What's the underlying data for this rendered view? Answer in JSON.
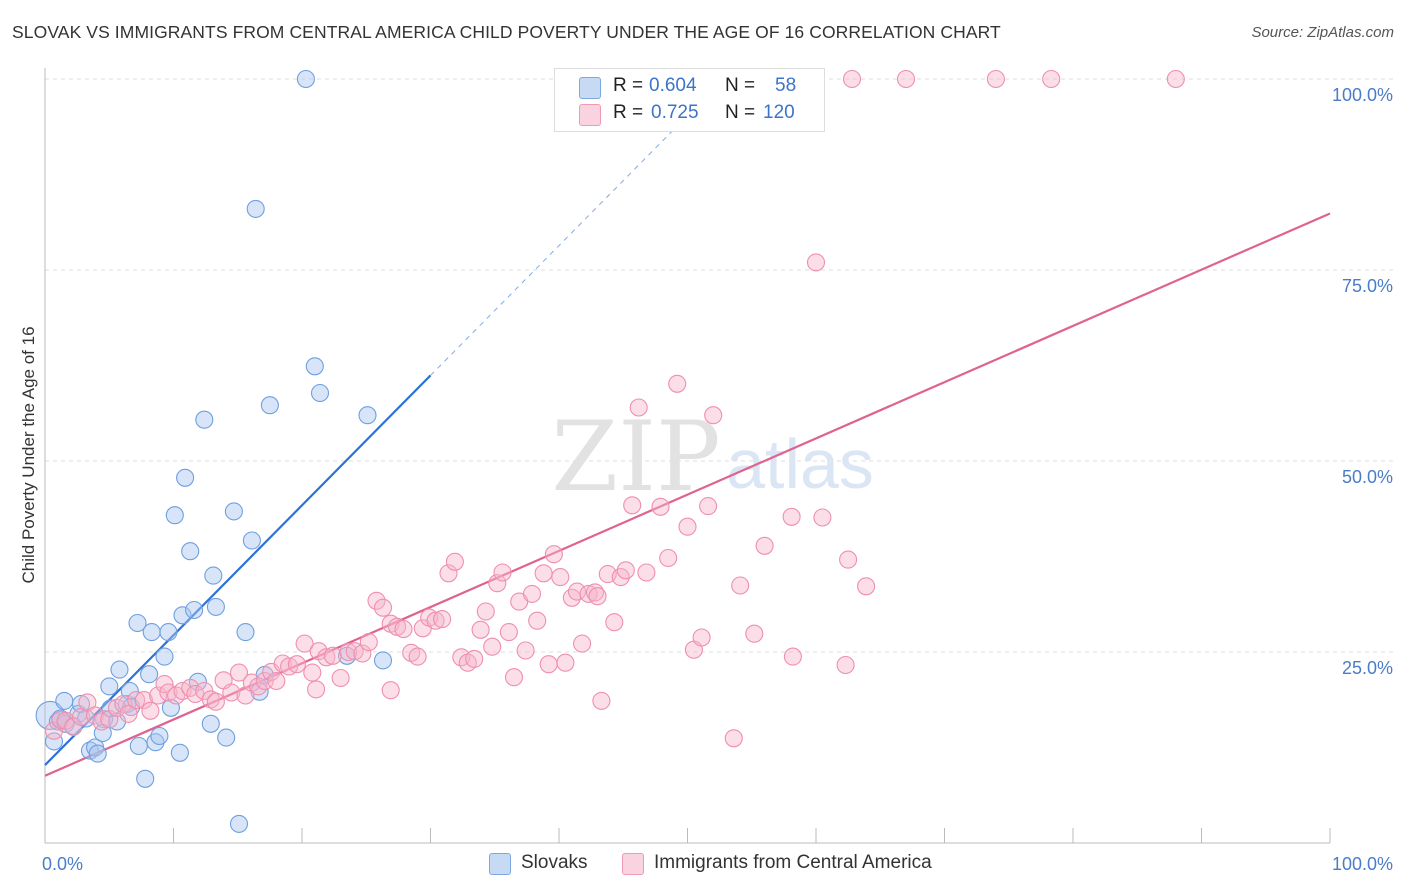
{
  "title": "SLOVAK VS IMMIGRANTS FROM CENTRAL AMERICA CHILD POVERTY UNDER THE AGE OF 16 CORRELATION CHART",
  "source": "Source: ZipAtlas.com",
  "watermark": {
    "zip": "ZIP",
    "atlas": "atlas"
  },
  "legend": {
    "rows": [
      {
        "r_label": "R =",
        "r_value": "0.604",
        "n_label": "N =",
        "n_value": "58",
        "color": "#a9c6ef"
      },
      {
        "r_label": "R =",
        "r_value": "0.725",
        "n_label": "N =",
        "n_value": "120",
        "color": "#f6b6cb"
      }
    ]
  },
  "bottom_legend": [
    {
      "label": "Slovaks",
      "color": "#a9c6ef"
    },
    {
      "label": "Immigrants from Central America",
      "color": "#f6b6cb"
    }
  ],
  "chart_data": {
    "type": "scatter",
    "title": "SLOVAK VS IMMIGRANTS FROM CENTRAL AMERICA CHILD POVERTY UNDER THE AGE OF 16 CORRELATION CHART",
    "xlabel": "",
    "ylabel": "Child Poverty Under the Age of 16",
    "xlim": [
      0,
      100
    ],
    "ylim": [
      0,
      102
    ],
    "x_tick_labels": [
      {
        "value": 0,
        "label": "0.0%"
      },
      {
        "value": 100,
        "label": "100.0%"
      }
    ],
    "y_tick_labels": [
      {
        "value": 25,
        "label": "25.0%"
      },
      {
        "value": 50,
        "label": "50.0%"
      },
      {
        "value": 75,
        "label": "75.0%"
      },
      {
        "value": 100,
        "label": "100.0%"
      }
    ],
    "grid": true,
    "legend_position": "top-center",
    "series": [
      {
        "name": "Slovaks",
        "color": "#6f9fe0",
        "fill": "#a9c6ef",
        "line_color": "#2d72d6",
        "trend": {
          "x0": 0,
          "y0": 10.2,
          "x1": 30,
          "y1": 61.2,
          "dash_to_x": 52,
          "dash_to_y": 98.6
        },
        "points": [
          [
            0.4,
            16.7
          ],
          [
            0.7,
            13.3
          ],
          [
            1.0,
            15.9
          ],
          [
            1.2,
            16.3
          ],
          [
            1.5,
            18.6
          ],
          [
            1.6,
            15.6
          ],
          [
            2.2,
            15.3
          ],
          [
            2.6,
            16.9
          ],
          [
            2.8,
            18.2
          ],
          [
            3.2,
            16.3
          ],
          [
            3.5,
            12.1
          ],
          [
            3.9,
            12.5
          ],
          [
            4.1,
            11.7
          ],
          [
            4.6,
            16.2
          ],
          [
            5.0,
            20.5
          ],
          [
            5.1,
            17.6
          ],
          [
            5.6,
            15.9
          ],
          [
            5.8,
            22.7
          ],
          [
            6.4,
            18.2
          ],
          [
            6.6,
            19.9
          ],
          [
            6.7,
            17.8
          ],
          [
            7.2,
            28.8
          ],
          [
            7.3,
            12.7
          ],
          [
            7.8,
            8.4
          ],
          [
            8.1,
            22.1
          ],
          [
            8.3,
            27.6
          ],
          [
            8.6,
            13.2
          ],
          [
            8.9,
            14.0
          ],
          [
            9.3,
            24.4
          ],
          [
            9.6,
            27.6
          ],
          [
            9.8,
            17.7
          ],
          [
            10.5,
            11.8
          ],
          [
            10.7,
            29.8
          ],
          [
            10.9,
            47.8
          ],
          [
            11.3,
            38.2
          ],
          [
            11.6,
            30.5
          ],
          [
            11.9,
            21.1
          ],
          [
            12.4,
            55.4
          ],
          [
            12.9,
            15.6
          ],
          [
            13.1,
            35.0
          ],
          [
            14.1,
            13.8
          ],
          [
            14.7,
            43.4
          ],
          [
            15.1,
            2.5
          ],
          [
            15.6,
            27.6
          ],
          [
            16.1,
            39.6
          ],
          [
            16.4,
            83.0
          ],
          [
            16.7,
            19.8
          ],
          [
            17.1,
            22.0
          ],
          [
            17.5,
            57.3
          ],
          [
            20.3,
            100.0
          ],
          [
            21.0,
            62.4
          ],
          [
            21.4,
            58.9
          ],
          [
            23.5,
            24.5
          ],
          [
            25.1,
            56.0
          ],
          [
            26.3,
            23.9
          ],
          [
            10.1,
            42.9
          ],
          [
            13.3,
            30.9
          ],
          [
            4.5,
            14.4
          ]
        ]
      },
      {
        "name": "Immigrants from Central America",
        "color": "#ef8fae",
        "fill": "#f6b6cb",
        "line_color": "#e0628f",
        "trend": {
          "x0": 0,
          "y0": 8.8,
          "x1": 100,
          "y1": 82.4
        },
        "points": [
          [
            0.7,
            14.7
          ],
          [
            1.2,
            16.1
          ],
          [
            1.6,
            16.0
          ],
          [
            2.2,
            15.2
          ],
          [
            2.8,
            16.5
          ],
          [
            3.3,
            18.4
          ],
          [
            3.9,
            16.7
          ],
          [
            4.4,
            15.9
          ],
          [
            5.0,
            16.2
          ],
          [
            5.6,
            17.7
          ],
          [
            6.1,
            18.2
          ],
          [
            6.5,
            16.9
          ],
          [
            7.1,
            18.7
          ],
          [
            7.7,
            18.7
          ],
          [
            8.2,
            17.3
          ],
          [
            8.8,
            19.3
          ],
          [
            9.3,
            20.8
          ],
          [
            9.6,
            19.7
          ],
          [
            10.2,
            19.3
          ],
          [
            10.7,
            19.9
          ],
          [
            11.3,
            20.3
          ],
          [
            11.7,
            19.5
          ],
          [
            12.4,
            19.9
          ],
          [
            12.9,
            18.8
          ],
          [
            13.3,
            18.5
          ],
          [
            13.9,
            21.3
          ],
          [
            14.5,
            19.7
          ],
          [
            15.1,
            22.3
          ],
          [
            15.6,
            19.3
          ],
          [
            16.1,
            21.0
          ],
          [
            16.6,
            20.5
          ],
          [
            17.1,
            21.2
          ],
          [
            17.6,
            22.4
          ],
          [
            18.0,
            21.2
          ],
          [
            18.5,
            23.5
          ],
          [
            19.0,
            23.1
          ],
          [
            19.6,
            23.4
          ],
          [
            20.2,
            26.1
          ],
          [
            20.8,
            22.3
          ],
          [
            21.3,
            25.1
          ],
          [
            21.9,
            24.3
          ],
          [
            22.4,
            24.5
          ],
          [
            23.0,
            21.6
          ],
          [
            23.6,
            25.0
          ],
          [
            24.1,
            25.1
          ],
          [
            24.7,
            24.8
          ],
          [
            25.2,
            26.3
          ],
          [
            25.8,
            31.7
          ],
          [
            26.3,
            30.8
          ],
          [
            26.9,
            28.7
          ],
          [
            27.4,
            28.3
          ],
          [
            27.9,
            28.0
          ],
          [
            28.5,
            24.9
          ],
          [
            29.0,
            24.4
          ],
          [
            29.4,
            28.1
          ],
          [
            29.9,
            29.5
          ],
          [
            30.4,
            29.1
          ],
          [
            30.9,
            29.3
          ],
          [
            31.4,
            35.3
          ],
          [
            31.9,
            36.8
          ],
          [
            32.4,
            24.3
          ],
          [
            32.9,
            23.6
          ],
          [
            33.4,
            24.1
          ],
          [
            33.9,
            27.9
          ],
          [
            34.3,
            30.3
          ],
          [
            34.8,
            25.7
          ],
          [
            35.2,
            34.0
          ],
          [
            35.6,
            35.4
          ],
          [
            36.1,
            27.6
          ],
          [
            36.5,
            21.7
          ],
          [
            36.9,
            31.6
          ],
          [
            37.4,
            25.2
          ],
          [
            37.9,
            32.6
          ],
          [
            38.3,
            29.1
          ],
          [
            38.8,
            35.3
          ],
          [
            39.2,
            23.4
          ],
          [
            39.6,
            37.8
          ],
          [
            40.1,
            34.8
          ],
          [
            40.5,
            23.6
          ],
          [
            41.0,
            32.1
          ],
          [
            41.4,
            32.9
          ],
          [
            41.8,
            26.1
          ],
          [
            42.3,
            32.6
          ],
          [
            42.8,
            32.8
          ],
          [
            43.3,
            18.6
          ],
          [
            43.8,
            35.2
          ],
          [
            44.3,
            28.9
          ],
          [
            44.8,
            34.8
          ],
          [
            45.2,
            35.7
          ],
          [
            45.7,
            44.2
          ],
          [
            46.2,
            57.0
          ],
          [
            46.8,
            35.4
          ],
          [
            47.9,
            44.0
          ],
          [
            48.5,
            37.3
          ],
          [
            49.2,
            60.1
          ],
          [
            50.0,
            41.4
          ],
          [
            50.5,
            25.3
          ],
          [
            51.1,
            26.9
          ],
          [
            51.6,
            44.1
          ],
          [
            52.0,
            56.0
          ],
          [
            53.6,
            13.7
          ],
          [
            54.1,
            33.7
          ],
          [
            55.2,
            27.4
          ],
          [
            56.0,
            38.9
          ],
          [
            58.1,
            42.7
          ],
          [
            58.2,
            24.4
          ],
          [
            60.0,
            76.0
          ],
          [
            60.5,
            42.6
          ],
          [
            62.3,
            23.3
          ],
          [
            62.5,
            37.1
          ],
          [
            63.9,
            33.6
          ],
          [
            62.8,
            100.0
          ],
          [
            67.0,
            100.0
          ],
          [
            74.0,
            100.0
          ],
          [
            78.3,
            100.0
          ],
          [
            88.0,
            100.0
          ],
          [
            57.0,
            100.0
          ],
          [
            21.1,
            20.1
          ],
          [
            26.9,
            20.0
          ],
          [
            43.0,
            32.3
          ]
        ]
      }
    ]
  }
}
